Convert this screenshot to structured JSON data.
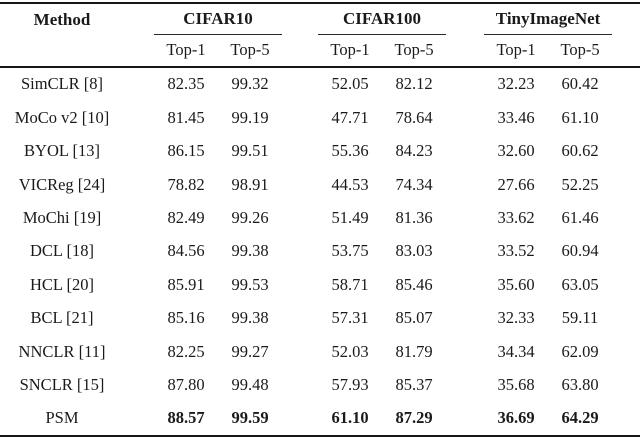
{
  "table": {
    "method_header": "Method",
    "groups": [
      {
        "label": "CIFAR10"
      },
      {
        "label": "CIFAR100"
      },
      {
        "label": "TinyImageNet"
      }
    ],
    "subheaders": [
      "Top-1",
      "Top-5"
    ],
    "rows": [
      {
        "method": "SimCLR [8]",
        "values": [
          "82.35",
          "99.32",
          "52.05",
          "82.12",
          "32.23",
          "60.42"
        ]
      },
      {
        "method": "MoCo v2 [10]",
        "values": [
          "81.45",
          "99.19",
          "47.71",
          "78.64",
          "33.46",
          "61.10"
        ]
      },
      {
        "method": "BYOL [13]",
        "values": [
          "86.15",
          "99.51",
          "55.36",
          "84.23",
          "32.60",
          "60.62"
        ]
      },
      {
        "method": "VICReg [24]",
        "values": [
          "78.82",
          "98.91",
          "44.53",
          "74.34",
          "27.66",
          "52.25"
        ]
      },
      {
        "method": "MoChi [19]",
        "values": [
          "82.49",
          "99.26",
          "51.49",
          "81.36",
          "33.62",
          "61.46"
        ]
      },
      {
        "method": "DCL [18]",
        "values": [
          "84.56",
          "99.38",
          "53.75",
          "83.03",
          "33.52",
          "60.94"
        ]
      },
      {
        "method": "HCL [20]",
        "values": [
          "85.91",
          "99.53",
          "58.71",
          "85.46",
          "35.60",
          "63.05"
        ]
      },
      {
        "method": "BCL [21]",
        "values": [
          "85.16",
          "99.38",
          "57.31",
          "85.07",
          "32.33",
          "59.11"
        ]
      },
      {
        "method": "NNCLR [11]",
        "values": [
          "82.25",
          "99.27",
          "52.03",
          "81.79",
          "34.34",
          "62.09"
        ]
      },
      {
        "method": "SNCLR [15]",
        "values": [
          "87.80",
          "99.48",
          "57.93",
          "85.37",
          "35.68",
          "63.80"
        ]
      },
      {
        "method": "PSM",
        "values": [
          "88.57",
          "99.59",
          "61.10",
          "87.29",
          "36.69",
          "64.29"
        ]
      }
    ],
    "colors": {
      "background": "#ffffff",
      "text": "#1a1a1a",
      "rule": "#161616"
    }
  }
}
